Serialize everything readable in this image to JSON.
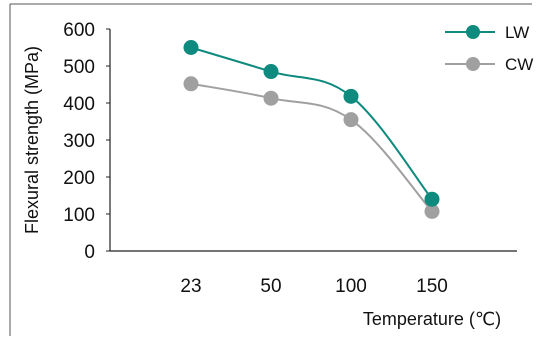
{
  "chart_data": {
    "type": "line",
    "title": "",
    "xlabel": "Temperature (℃)",
    "ylabel": "Flexural strength (MPa)",
    "categories": [
      "23",
      "50",
      "100",
      "150"
    ],
    "ylim": [
      0,
      600
    ],
    "yticks": [
      "0",
      "100",
      "200",
      "300",
      "400",
      "500",
      "600"
    ],
    "grid": false,
    "legend_position": "top-right",
    "series": [
      {
        "name": "LW",
        "values": [
          550,
          485,
          418,
          140
        ],
        "color": "#0e8a7e",
        "marker": "circle"
      },
      {
        "name": "CW",
        "values": [
          452,
          413,
          355,
          107
        ],
        "color": "#a0a0a0",
        "marker": "circle"
      }
    ]
  }
}
